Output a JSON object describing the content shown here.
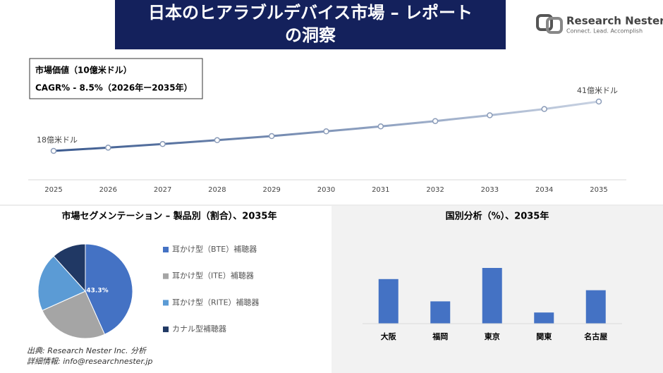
{
  "header": {
    "title": [
      "日本のヒアラブルデバイス市場 – レポート",
      "の洞察"
    ],
    "logo": {
      "name": "Research Nester",
      "tagline": "Connect. Lead. Accomplish"
    }
  },
  "info": {
    "market_value": "市場価値（10億米ドル）",
    "cagr": "CAGR% - 8.5%（2026年ー2035年）"
  },
  "chart_data": [
    {
      "type": "line",
      "categories": [
        "2025",
        "2026",
        "2027",
        "2028",
        "2029",
        "2030",
        "2031",
        "2032",
        "2033",
        "2034",
        "2035"
      ],
      "values": [
        18,
        19.5,
        21.2,
        23,
        24.9,
        27.1,
        29.4,
        31.9,
        34.6,
        37.5,
        41
      ],
      "value_labels": [
        "18億米ドル",
        null,
        null,
        null,
        null,
        null,
        null,
        null,
        null,
        null,
        "41億米ドル"
      ],
      "color": [
        "#3b5a8f",
        "#c8d2e2"
      ]
    },
    {
      "type": "pie",
      "title": "市場セグメンテーション – 製品別（割合）、2035年",
      "categories": [
        "耳かけ型（BTE）補聴器",
        "耳かけ型（ITE）補聴器",
        "耳かけ型（RITE）補聴器",
        "カナル型補聴器"
      ],
      "values": [
        43.3,
        25,
        20,
        11.7
      ],
      "value_labels": [
        "43.3%",
        null,
        null,
        null
      ],
      "colors": [
        "#4472c4",
        "#a5a5a5",
        "#5b9bd5",
        "#203864"
      ]
    },
    {
      "type": "bar",
      "title": "国別分析（%）、2035年",
      "categories": [
        "大阪",
        "福岡",
        "東京",
        "関東",
        "名古屋"
      ],
      "values": [
        24,
        12,
        30,
        6,
        18
      ],
      "color": "#4472c4"
    }
  ],
  "source": [
    "出典: Research Nester Inc. 分析",
    "詳細情報: info@researchnester.jp"
  ]
}
